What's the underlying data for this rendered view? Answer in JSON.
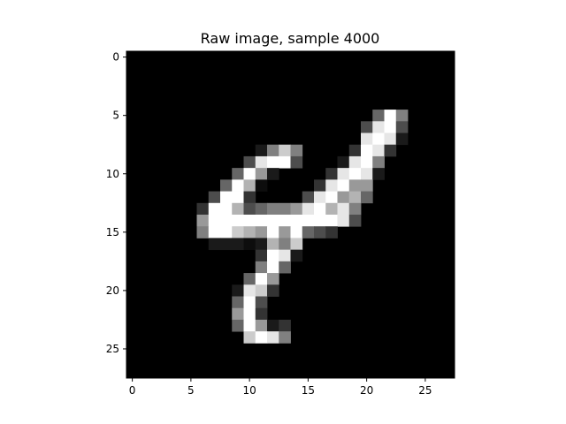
{
  "chart_data": {
    "type": "heatmap",
    "title": "Raw image, sample 4000",
    "xlabel": "",
    "ylabel": "",
    "colormap": "gray",
    "xlim": [
      -0.5,
      27.5
    ],
    "ylim": [
      27.5,
      -0.5
    ],
    "xticks": [
      0,
      5,
      10,
      15,
      20,
      25
    ],
    "yticks": [
      0,
      5,
      10,
      15,
      20,
      25
    ],
    "xtick_labels": [
      "0",
      "5",
      "10",
      "15",
      "20",
      "25"
    ],
    "ytick_labels": [
      "0",
      "5",
      "10",
      "15",
      "20",
      "25"
    ],
    "grid": false,
    "background_color": "#000000",
    "image_size": [
      28,
      28
    ],
    "pixels": [
      {
        "r": 5,
        "c": 21,
        "v": 0.4
      },
      {
        "r": 5,
        "c": 22,
        "v": 1.0
      },
      {
        "r": 5,
        "c": 23,
        "v": 0.5
      },
      {
        "r": 6,
        "c": 20,
        "v": 0.3
      },
      {
        "r": 6,
        "c": 21,
        "v": 0.9
      },
      {
        "r": 6,
        "c": 22,
        "v": 1.0
      },
      {
        "r": 6,
        "c": 23,
        "v": 0.3
      },
      {
        "r": 7,
        "c": 20,
        "v": 0.9
      },
      {
        "r": 7,
        "c": 21,
        "v": 1.0
      },
      {
        "r": 7,
        "c": 22,
        "v": 0.9
      },
      {
        "r": 7,
        "c": 23,
        "v": 0.1
      },
      {
        "r": 8,
        "c": 11,
        "v": 0.1
      },
      {
        "r": 8,
        "c": 12,
        "v": 0.5
      },
      {
        "r": 8,
        "c": 13,
        "v": 0.8
      },
      {
        "r": 8,
        "c": 14,
        "v": 0.5
      },
      {
        "r": 8,
        "c": 19,
        "v": 0.2
      },
      {
        "r": 8,
        "c": 20,
        "v": 1.0
      },
      {
        "r": 8,
        "c": 21,
        "v": 0.9
      },
      {
        "r": 8,
        "c": 22,
        "v": 0.2
      },
      {
        "r": 9,
        "c": 10,
        "v": 0.3
      },
      {
        "r": 9,
        "c": 11,
        "v": 0.9
      },
      {
        "r": 9,
        "c": 12,
        "v": 1.0
      },
      {
        "r": 9,
        "c": 13,
        "v": 1.0
      },
      {
        "r": 9,
        "c": 14,
        "v": 0.3
      },
      {
        "r": 9,
        "c": 18,
        "v": 0.1
      },
      {
        "r": 9,
        "c": 19,
        "v": 0.9
      },
      {
        "r": 9,
        "c": 20,
        "v": 1.0
      },
      {
        "r": 9,
        "c": 21,
        "v": 0.5
      },
      {
        "r": 10,
        "c": 9,
        "v": 0.4
      },
      {
        "r": 10,
        "c": 10,
        "v": 1.0
      },
      {
        "r": 10,
        "c": 11,
        "v": 0.6
      },
      {
        "r": 10,
        "c": 12,
        "v": 0.1
      },
      {
        "r": 10,
        "c": 17,
        "v": 0.2
      },
      {
        "r": 10,
        "c": 18,
        "v": 0.9
      },
      {
        "r": 10,
        "c": 19,
        "v": 1.0
      },
      {
        "r": 10,
        "c": 20,
        "v": 0.9
      },
      {
        "r": 10,
        "c": 21,
        "v": 0.1
      },
      {
        "r": 11,
        "c": 8,
        "v": 0.4
      },
      {
        "r": 11,
        "c": 9,
        "v": 1.0
      },
      {
        "r": 11,
        "c": 10,
        "v": 0.7
      },
      {
        "r": 11,
        "c": 11,
        "v": 0.05
      },
      {
        "r": 11,
        "c": 16,
        "v": 0.2
      },
      {
        "r": 11,
        "c": 17,
        "v": 0.9
      },
      {
        "r": 11,
        "c": 18,
        "v": 1.0
      },
      {
        "r": 11,
        "c": 19,
        "v": 0.6
      },
      {
        "r": 11,
        "c": 20,
        "v": 0.6
      },
      {
        "r": 12,
        "c": 7,
        "v": 0.3
      },
      {
        "r": 12,
        "c": 8,
        "v": 1.0
      },
      {
        "r": 12,
        "c": 9,
        "v": 1.0
      },
      {
        "r": 12,
        "c": 10,
        "v": 0.2
      },
      {
        "r": 12,
        "c": 15,
        "v": 0.3
      },
      {
        "r": 12,
        "c": 16,
        "v": 0.9
      },
      {
        "r": 12,
        "c": 17,
        "v": 1.0
      },
      {
        "r": 12,
        "c": 18,
        "v": 0.6
      },
      {
        "r": 12,
        "c": 19,
        "v": 0.7
      },
      {
        "r": 12,
        "c": 20,
        "v": 0.4
      },
      {
        "r": 13,
        "c": 6,
        "v": 0.2
      },
      {
        "r": 13,
        "c": 7,
        "v": 1.0
      },
      {
        "r": 13,
        "c": 8,
        "v": 1.0
      },
      {
        "r": 13,
        "c": 9,
        "v": 0.7
      },
      {
        "r": 13,
        "c": 10,
        "v": 0.3
      },
      {
        "r": 13,
        "c": 11,
        "v": 0.4
      },
      {
        "r": 13,
        "c": 12,
        "v": 0.5
      },
      {
        "r": 13,
        "c": 13,
        "v": 0.5
      },
      {
        "r": 13,
        "c": 14,
        "v": 0.6
      },
      {
        "r": 13,
        "c": 15,
        "v": 0.9
      },
      {
        "r": 13,
        "c": 16,
        "v": 1.0
      },
      {
        "r": 13,
        "c": 17,
        "v": 0.7
      },
      {
        "r": 13,
        "c": 18,
        "v": 0.9
      },
      {
        "r": 13,
        "c": 19,
        "v": 0.5
      },
      {
        "r": 14,
        "c": 6,
        "v": 0.6
      },
      {
        "r": 14,
        "c": 7,
        "v": 1.0
      },
      {
        "r": 14,
        "c": 8,
        "v": 1.0
      },
      {
        "r": 14,
        "c": 9,
        "v": 1.0
      },
      {
        "r": 14,
        "c": 10,
        "v": 1.0
      },
      {
        "r": 14,
        "c": 11,
        "v": 1.0
      },
      {
        "r": 14,
        "c": 12,
        "v": 1.0
      },
      {
        "r": 14,
        "c": 13,
        "v": 1.0
      },
      {
        "r": 14,
        "c": 14,
        "v": 1.0
      },
      {
        "r": 14,
        "c": 15,
        "v": 1.0
      },
      {
        "r": 14,
        "c": 16,
        "v": 1.0
      },
      {
        "r": 14,
        "c": 17,
        "v": 1.0
      },
      {
        "r": 14,
        "c": 18,
        "v": 0.9
      },
      {
        "r": 14,
        "c": 19,
        "v": 0.3
      },
      {
        "r": 15,
        "c": 6,
        "v": 0.5
      },
      {
        "r": 15,
        "c": 7,
        "v": 1.0
      },
      {
        "r": 15,
        "c": 8,
        "v": 1.0
      },
      {
        "r": 15,
        "c": 9,
        "v": 0.8
      },
      {
        "r": 15,
        "c": 10,
        "v": 0.7
      },
      {
        "r": 15,
        "c": 11,
        "v": 0.6
      },
      {
        "r": 15,
        "c": 12,
        "v": 1.0
      },
      {
        "r": 15,
        "c": 13,
        "v": 0.6
      },
      {
        "r": 15,
        "c": 14,
        "v": 1.0
      },
      {
        "r": 15,
        "c": 15,
        "v": 0.4
      },
      {
        "r": 15,
        "c": 16,
        "v": 0.3
      },
      {
        "r": 15,
        "c": 17,
        "v": 0.2
      },
      {
        "r": 16,
        "c": 7,
        "v": 0.1
      },
      {
        "r": 16,
        "c": 8,
        "v": 0.1
      },
      {
        "r": 16,
        "c": 9,
        "v": 0.1
      },
      {
        "r": 16,
        "c": 10,
        "v": 0.05
      },
      {
        "r": 16,
        "c": 11,
        "v": 0.1
      },
      {
        "r": 16,
        "c": 12,
        "v": 0.7
      },
      {
        "r": 16,
        "c": 13,
        "v": 0.5
      },
      {
        "r": 16,
        "c": 14,
        "v": 0.8
      },
      {
        "r": 17,
        "c": 11,
        "v": 0.2
      },
      {
        "r": 17,
        "c": 12,
        "v": 1.0
      },
      {
        "r": 17,
        "c": 13,
        "v": 0.9
      },
      {
        "r": 17,
        "c": 14,
        "v": 0.1
      },
      {
        "r": 18,
        "c": 11,
        "v": 0.5
      },
      {
        "r": 18,
        "c": 12,
        "v": 1.0
      },
      {
        "r": 18,
        "c": 13,
        "v": 0.4
      },
      {
        "r": 19,
        "c": 10,
        "v": 0.4
      },
      {
        "r": 19,
        "c": 11,
        "v": 1.0
      },
      {
        "r": 19,
        "c": 12,
        "v": 0.6
      },
      {
        "r": 20,
        "c": 9,
        "v": 0.1
      },
      {
        "r": 20,
        "c": 10,
        "v": 0.9
      },
      {
        "r": 20,
        "c": 11,
        "v": 0.8
      },
      {
        "r": 20,
        "c": 12,
        "v": 0.2
      },
      {
        "r": 21,
        "c": 9,
        "v": 0.4
      },
      {
        "r": 21,
        "c": 10,
        "v": 1.0
      },
      {
        "r": 21,
        "c": 11,
        "v": 0.3
      },
      {
        "r": 22,
        "c": 9,
        "v": 0.6
      },
      {
        "r": 22,
        "c": 10,
        "v": 1.0
      },
      {
        "r": 22,
        "c": 11,
        "v": 0.2
      },
      {
        "r": 23,
        "c": 9,
        "v": 0.4
      },
      {
        "r": 23,
        "c": 10,
        "v": 1.0
      },
      {
        "r": 23,
        "c": 11,
        "v": 0.6
      },
      {
        "r": 23,
        "c": 12,
        "v": 0.1
      },
      {
        "r": 23,
        "c": 13,
        "v": 0.2
      },
      {
        "r": 24,
        "c": 10,
        "v": 0.8
      },
      {
        "r": 24,
        "c": 11,
        "v": 1.0
      },
      {
        "r": 24,
        "c": 12,
        "v": 0.9
      },
      {
        "r": 24,
        "c": 13,
        "v": 0.5
      }
    ]
  }
}
